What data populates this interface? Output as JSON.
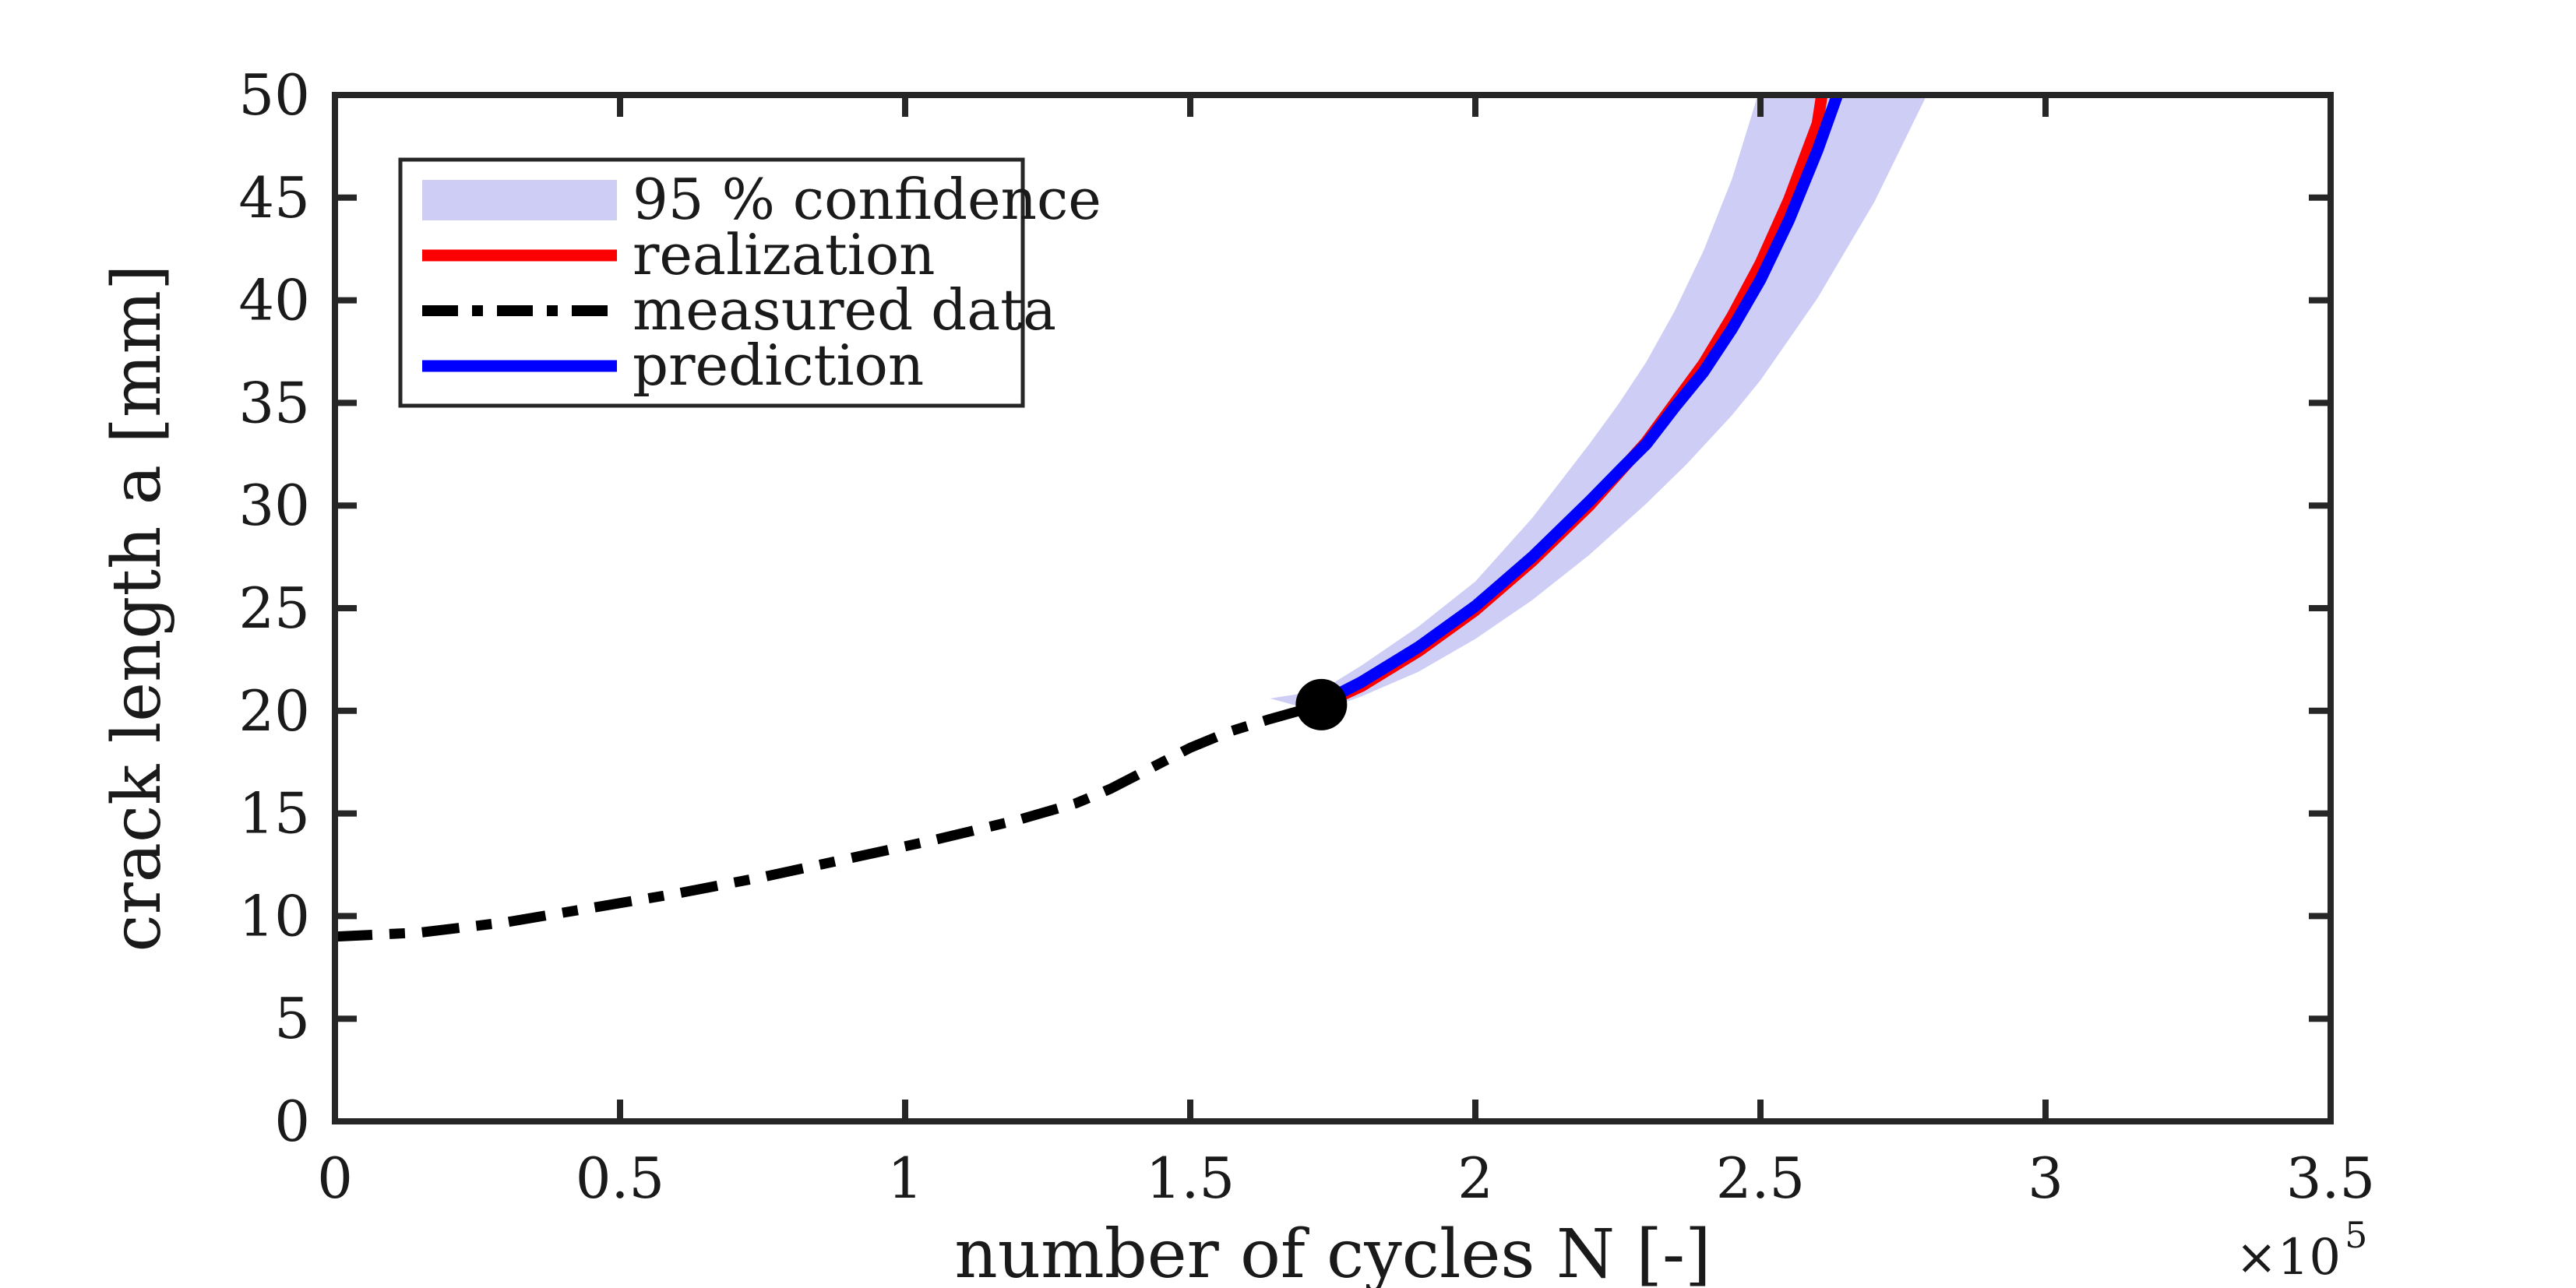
{
  "figure": {
    "background_color": "#ffffff",
    "axis_color": "#262626",
    "text_color": "#1a1a1a"
  },
  "axes": {
    "xlabel": "number of cycles N [-]",
    "ylabel": "crack length a [mm]",
    "multiplier_base": "×10",
    "multiplier_exponent": "5"
  },
  "legend": {
    "items": [
      {
        "label": "95 % confidence",
        "marker": "patch",
        "color": "#cdcdf6"
      },
      {
        "label": "realization",
        "marker": "line",
        "color": "#ff0000"
      },
      {
        "label": "measured data",
        "marker": "dashdot",
        "color": "#000000"
      },
      {
        "label": "prediction",
        "marker": "line",
        "color": "#0000ff"
      }
    ]
  },
  "chart_data": {
    "type": "line",
    "title": "",
    "xlabel": "number of cycles N [-]",
    "ylabel": "crack length a [mm]",
    "xlim": [
      0,
      3.5
    ],
    "ylim": [
      0,
      50
    ],
    "x_unit_multiplier": 100000,
    "grid": false,
    "legend_position": "upper-left",
    "x_tick_values": [
      0,
      0.5,
      1,
      1.5,
      2,
      2.5,
      3,
      3.5
    ],
    "x_tick_labels": [
      "0",
      "0.5",
      "1",
      "1.5",
      "2",
      "2.5",
      "3",
      "3.5"
    ],
    "y_tick_values": [
      0,
      5,
      10,
      15,
      20,
      25,
      30,
      35,
      40,
      45,
      50
    ],
    "y_tick_labels": [
      "0",
      "5",
      "10",
      "15",
      "20",
      "25",
      "30",
      "35",
      "40",
      "45",
      "50"
    ],
    "band": {
      "name": "95 % confidence",
      "color": "#cdcdf6",
      "upper": {
        "x": [
          1.64,
          1.73,
          1.8,
          1.9,
          2.0,
          2.1,
          2.15,
          2.2,
          2.25,
          2.3,
          2.35,
          2.4,
          2.45,
          2.49,
          2.5
        ],
        "y": [
          20.6,
          21.0,
          22.2,
          24.1,
          26.3,
          29.4,
          31.2,
          33.0,
          34.9,
          37.0,
          39.5,
          42.4,
          45.9,
          49.5,
          50.6
        ]
      },
      "lower": {
        "x": [
          1.64,
          1.7,
          1.73,
          1.8,
          1.9,
          2.0,
          2.1,
          2.2,
          2.3,
          2.37,
          2.45,
          2.5,
          2.6,
          2.7,
          2.79,
          2.81
        ],
        "y": [
          20.6,
          20.15,
          20.0,
          20.7,
          21.9,
          23.5,
          25.4,
          27.6,
          30.1,
          32.0,
          34.4,
          36.1,
          40.1,
          44.8,
          49.9,
          50.6
        ]
      }
    },
    "series": [
      {
        "name": "measured data",
        "style": "dashdot",
        "color": "#000000",
        "x": [
          0,
          0.15,
          0.3,
          0.45,
          0.6,
          0.75,
          0.9,
          1.05,
          1.2,
          1.3,
          1.36,
          1.43,
          1.5,
          1.57,
          1.64,
          1.73
        ],
        "y": [
          9.0,
          9.2,
          9.7,
          10.4,
          11.1,
          11.9,
          12.8,
          13.7,
          14.7,
          15.5,
          16.2,
          17.2,
          18.2,
          19.0,
          19.6,
          20.3
        ]
      },
      {
        "name": "realization",
        "style": "solid",
        "color": "#ff0000",
        "x": [
          1.73,
          1.8,
          1.9,
          2.0,
          2.1,
          2.2,
          2.3,
          2.35,
          2.4,
          2.45,
          2.5,
          2.55,
          2.6,
          2.61
        ],
        "y": [
          20.3,
          21.2,
          22.9,
          24.9,
          27.3,
          30.0,
          33.1,
          35.0,
          36.9,
          39.2,
          41.8,
          44.9,
          48.6,
          50.4
        ]
      },
      {
        "name": "prediction",
        "style": "solid",
        "color": "#0000ff",
        "x": [
          1.73,
          1.8,
          1.9,
          1.95,
          2.0,
          2.1,
          2.2,
          2.26,
          2.3,
          2.35,
          2.4,
          2.45,
          2.5,
          2.55,
          2.6,
          2.64
        ],
        "y": [
          20.4,
          21.4,
          23.1,
          24.1,
          25.1,
          27.5,
          30.2,
          31.9,
          33.0,
          34.8,
          36.5,
          38.6,
          41.0,
          43.9,
          47.3,
          50.4
        ]
      }
    ],
    "marker": {
      "name": "last measurement",
      "shape": "filled-circle",
      "color": "#000000",
      "x": 1.73,
      "y": 20.3
    }
  }
}
